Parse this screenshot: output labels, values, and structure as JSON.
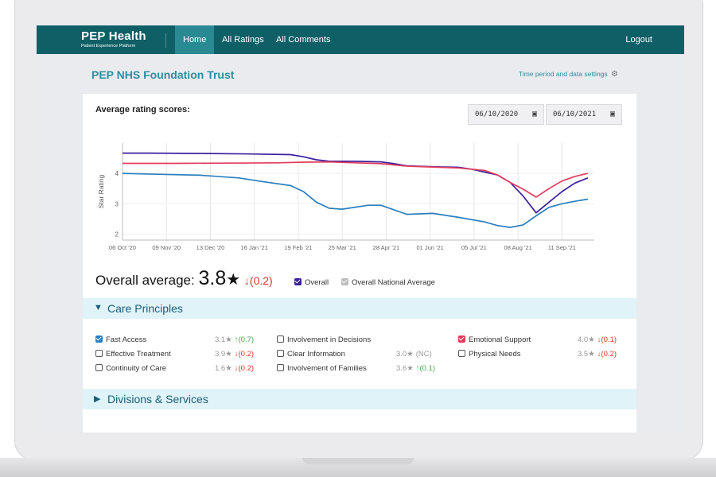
{
  "nav": {
    "brand_title": "PEP Health",
    "brand_subtitle": "Patient Experience Platform",
    "items": [
      {
        "label": "Home",
        "active": true
      },
      {
        "label": "All Ratings",
        "active": false
      },
      {
        "label": "All Comments",
        "active": false
      }
    ],
    "logout": "Logout"
  },
  "header": {
    "title": "PEP NHS Foundation Trust",
    "settings_link": "Time period and data settings"
  },
  "chart_section": {
    "label": "Average rating scores:",
    "date_from": "06/10/2020",
    "date_to": "06/10/2021"
  },
  "chart_data": {
    "type": "line",
    "ylabel": "Star Rating",
    "xlabel": "",
    "ylim": [
      1.8,
      5.0
    ],
    "yticks": [
      2,
      3,
      4
    ],
    "x_tick_labels": [
      "06 Oct '20",
      "09 Nov '20",
      "13 Dec '20",
      "16 Jan '21",
      "19 Feb '21",
      "25 Mar '21",
      "28 Apr '21",
      "01 Jun '21",
      "05 Jul '21",
      "08 Aug '21",
      "11 Sep '21"
    ],
    "x_tick_days": [
      0,
      34,
      68,
      102,
      136,
      170,
      204,
      238,
      272,
      306,
      340
    ],
    "grid": true,
    "series": [
      {
        "name": "Overall",
        "color": "#3b1f9e",
        "x": [
          0,
          20,
          60,
          100,
          130,
          140,
          150,
          160,
          180,
          200,
          210,
          220,
          240,
          260,
          270,
          290,
          300,
          310,
          320,
          330,
          340,
          350,
          360
        ],
        "y": [
          4.67,
          4.67,
          4.66,
          4.64,
          4.62,
          4.55,
          4.45,
          4.4,
          4.4,
          4.38,
          4.32,
          4.25,
          4.22,
          4.2,
          4.14,
          3.95,
          3.7,
          3.25,
          2.7,
          3.05,
          3.4,
          3.68,
          3.85
        ]
      },
      {
        "name": "",
        "color": "#e23c5c",
        "x": [
          0,
          40,
          80,
          120,
          140,
          160,
          180,
          200,
          220,
          240,
          260,
          280,
          290,
          300,
          310,
          320,
          330,
          340,
          350,
          360
        ],
        "y": [
          4.33,
          4.33,
          4.34,
          4.35,
          4.37,
          4.38,
          4.35,
          4.32,
          4.24,
          4.21,
          4.18,
          4.1,
          3.95,
          3.7,
          3.48,
          3.22,
          3.5,
          3.75,
          3.9,
          4.0
        ]
      },
      {
        "name": "",
        "color": "#2a7fbf",
        "x": [
          0,
          30,
          60,
          90,
          110,
          130,
          140,
          150,
          160,
          170,
          190,
          200,
          220,
          240,
          260,
          280,
          290,
          300,
          310,
          320,
          330,
          340,
          350,
          360
        ],
        "y": [
          4.0,
          3.97,
          3.94,
          3.85,
          3.72,
          3.6,
          3.4,
          3.05,
          2.85,
          2.82,
          2.95,
          2.95,
          2.65,
          2.68,
          2.55,
          2.4,
          2.28,
          2.22,
          2.3,
          2.6,
          2.88,
          3.0,
          3.08,
          3.15
        ]
      }
    ]
  },
  "overall": {
    "prefix": "Overall average:",
    "value": "3.8",
    "star": "★",
    "delta": "↓(0.2)"
  },
  "legend": [
    {
      "label": "Overall",
      "checked": true,
      "color": "#3b1f9e"
    },
    {
      "label": "Overall National Average",
      "checked": true,
      "color": "#bcbcbc"
    }
  ],
  "care_principles": {
    "title": "Care Principles",
    "items": [
      {
        "label": "Fast Access",
        "checked": true,
        "check_color": "#2a7fbf",
        "score": "3.1★",
        "delta": "↑(0.7)",
        "dir": "up"
      },
      {
        "label": "Effective Treatment",
        "checked": false,
        "score": "3.9★",
        "delta": "↓(0.2)",
        "dir": "down"
      },
      {
        "label": "Continuity of Care",
        "checked": false,
        "score": "1.6★",
        "delta": "↓(0.2)",
        "dir": "down"
      },
      {
        "label": "Involvement in Decisions",
        "checked": false,
        "score": "",
        "delta": "",
        "dir": ""
      },
      {
        "label": "Clear Information",
        "checked": false,
        "score": "3.0★",
        "delta": "(NC)",
        "dir": "nc"
      },
      {
        "label": "Involvement of Families",
        "checked": false,
        "score": "3.6★",
        "delta": "↑(0.1)",
        "dir": "up"
      },
      {
        "label": "Emotional Support",
        "checked": true,
        "check_color": "#e23c5c",
        "score": "4.0★",
        "delta": "↓(0.1)",
        "dir": "down"
      },
      {
        "label": "Physical Needs",
        "checked": false,
        "score": "3.5★",
        "delta": "↓(0.2)",
        "dir": "down"
      }
    ]
  },
  "divisions": {
    "title": "Divisions & Services"
  }
}
